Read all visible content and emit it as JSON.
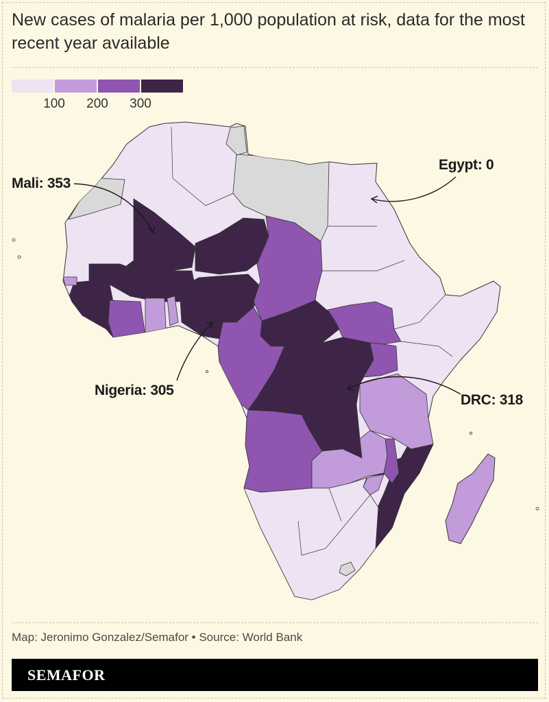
{
  "title": "New cases of malaria per 1,000 population at risk, data for the most recent year available",
  "legend": {
    "colors": [
      "#ede3f3",
      "#c29bdb",
      "#8f55b0",
      "#3e2548"
    ],
    "ticks": [
      "100",
      "200",
      "300"
    ],
    "no_data_color": "#d9d9d9"
  },
  "annotations": {
    "mali": "Mali: 353",
    "egypt": "Egypt: 0",
    "nigeria": "Nigeria: 305",
    "drc": "DRC: 318"
  },
  "credit": "Map: Jeronimo Gonzalez/Semafor • Source: World Bank",
  "brand": "SEMAFOR"
}
